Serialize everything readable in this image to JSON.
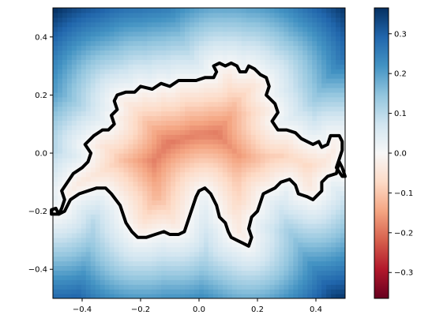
{
  "chart_data": {
    "type": "heatmap",
    "title": "",
    "xlabel": "",
    "ylabel": "",
    "xlim": [
      -0.5,
      0.5
    ],
    "ylim": [
      -0.5,
      0.5
    ],
    "x_ticks": [
      {
        "value": -0.4,
        "label": "−0.4"
      },
      {
        "value": -0.2,
        "label": "−0.2"
      },
      {
        "value": 0.0,
        "label": "0.0"
      },
      {
        "value": 0.2,
        "label": "0.2"
      },
      {
        "value": 0.4,
        "label": "0.4"
      }
    ],
    "y_ticks": [
      {
        "value": 0.4,
        "label": "0.4"
      },
      {
        "value": 0.2,
        "label": "0.2"
      },
      {
        "value": 0.0,
        "label": "0.0"
      },
      {
        "value": -0.2,
        "label": "−0.2"
      },
      {
        "value": -0.4,
        "label": "−0.4"
      }
    ],
    "colorbar": {
      "colormap": "RdBu",
      "range": [
        -0.365,
        0.365
      ],
      "ticks": [
        {
          "value": 0.3,
          "label": "0.3"
        },
        {
          "value": 0.2,
          "label": "0.2"
        },
        {
          "value": 0.1,
          "label": "0.1"
        },
        {
          "value": 0.0,
          "label": "0.0"
        },
        {
          "value": -0.1,
          "label": "−0.1"
        },
        {
          "value": -0.2,
          "label": "−0.2"
        },
        {
          "value": -0.3,
          "label": "−0.3"
        }
      ]
    },
    "field": {
      "data_x_range": [
        -0.5,
        0.5
      ],
      "data_y_range": [
        -0.5,
        0.5
      ],
      "description_values": "signed distance to boundary: negative inside, positive outside",
      "min_value": -0.15,
      "max_value": 0.365
    },
    "outline": {
      "color": "#000000",
      "points": [
        [
          -0.505,
          -0.195
        ],
        [
          -0.49,
          -0.19
        ],
        [
          -0.48,
          -0.21
        ],
        [
          -0.47,
          -0.19
        ],
        [
          -0.46,
          -0.16
        ],
        [
          -0.47,
          -0.13
        ],
        [
          -0.45,
          -0.1
        ],
        [
          -0.43,
          -0.07
        ],
        [
          -0.4,
          -0.05
        ],
        [
          -0.38,
          -0.03
        ],
        [
          -0.37,
          0.0
        ],
        [
          -0.39,
          0.03
        ],
        [
          -0.36,
          0.06
        ],
        [
          -0.33,
          0.08
        ],
        [
          -0.31,
          0.08
        ],
        [
          -0.29,
          0.1
        ],
        [
          -0.3,
          0.13
        ],
        [
          -0.28,
          0.15
        ],
        [
          -0.29,
          0.18
        ],
        [
          -0.28,
          0.2
        ],
        [
          -0.25,
          0.21
        ],
        [
          -0.22,
          0.21
        ],
        [
          -0.2,
          0.23
        ],
        [
          -0.16,
          0.22
        ],
        [
          -0.13,
          0.24
        ],
        [
          -0.1,
          0.23
        ],
        [
          -0.07,
          0.25
        ],
        [
          -0.04,
          0.25
        ],
        [
          -0.01,
          0.25
        ],
        [
          0.02,
          0.26
        ],
        [
          0.05,
          0.26
        ],
        [
          0.06,
          0.28
        ],
        [
          0.05,
          0.3
        ],
        [
          0.07,
          0.31
        ],
        [
          0.09,
          0.3
        ],
        [
          0.11,
          0.31
        ],
        [
          0.13,
          0.3
        ],
        [
          0.14,
          0.28
        ],
        [
          0.16,
          0.28
        ],
        [
          0.17,
          0.3
        ],
        [
          0.19,
          0.29
        ],
        [
          0.21,
          0.27
        ],
        [
          0.23,
          0.26
        ],
        [
          0.24,
          0.23
        ],
        [
          0.23,
          0.2
        ],
        [
          0.26,
          0.17
        ],
        [
          0.27,
          0.14
        ],
        [
          0.25,
          0.11
        ],
        [
          0.27,
          0.08
        ],
        [
          0.3,
          0.08
        ],
        [
          0.33,
          0.07
        ],
        [
          0.35,
          0.05
        ],
        [
          0.37,
          0.04
        ],
        [
          0.39,
          0.03
        ],
        [
          0.41,
          0.04
        ],
        [
          0.42,
          0.02
        ],
        [
          0.44,
          0.03
        ],
        [
          0.45,
          0.06
        ],
        [
          0.48,
          0.06
        ],
        [
          0.49,
          0.04
        ],
        [
          0.49,
          0.01
        ],
        [
          0.48,
          -0.02
        ],
        [
          0.47,
          -0.05
        ],
        [
          0.49,
          -0.08
        ],
        [
          0.5,
          -0.08
        ],
        [
          0.49,
          -0.05
        ],
        [
          0.48,
          -0.03
        ],
        [
          0.47,
          -0.07
        ],
        [
          0.44,
          -0.08
        ],
        [
          0.42,
          -0.1
        ],
        [
          0.42,
          -0.13
        ],
        [
          0.39,
          -0.16
        ],
        [
          0.37,
          -0.15
        ],
        [
          0.34,
          -0.14
        ],
        [
          0.33,
          -0.11
        ],
        [
          0.31,
          -0.09
        ],
        [
          0.28,
          -0.1
        ],
        [
          0.26,
          -0.12
        ],
        [
          0.24,
          -0.13
        ],
        [
          0.22,
          -0.14
        ],
        [
          0.21,
          -0.17
        ],
        [
          0.2,
          -0.2
        ],
        [
          0.18,
          -0.22
        ],
        [
          0.17,
          -0.26
        ],
        [
          0.18,
          -0.29
        ],
        [
          0.17,
          -0.32
        ],
        [
          0.15,
          -0.31
        ],
        [
          0.13,
          -0.3
        ],
        [
          0.11,
          -0.29
        ],
        [
          0.1,
          -0.27
        ],
        [
          0.09,
          -0.24
        ],
        [
          0.07,
          -0.22
        ],
        [
          0.06,
          -0.18
        ],
        [
          0.04,
          -0.14
        ],
        [
          0.02,
          -0.12
        ],
        [
          0.0,
          -0.13
        ],
        [
          -0.01,
          -0.15
        ],
        [
          -0.02,
          -0.18
        ],
        [
          -0.03,
          -0.21
        ],
        [
          -0.04,
          -0.24
        ],
        [
          -0.05,
          -0.27
        ],
        [
          -0.07,
          -0.28
        ],
        [
          -0.1,
          -0.28
        ],
        [
          -0.12,
          -0.27
        ],
        [
          -0.15,
          -0.28
        ],
        [
          -0.18,
          -0.29
        ],
        [
          -0.21,
          -0.29
        ],
        [
          -0.23,
          -0.27
        ],
        [
          -0.25,
          -0.24
        ],
        [
          -0.26,
          -0.21
        ],
        [
          -0.27,
          -0.18
        ],
        [
          -0.3,
          -0.14
        ],
        [
          -0.32,
          -0.12
        ],
        [
          -0.35,
          -0.12
        ],
        [
          -0.38,
          -0.13
        ],
        [
          -0.41,
          -0.14
        ],
        [
          -0.44,
          -0.16
        ],
        [
          -0.46,
          -0.2
        ],
        [
          -0.48,
          -0.21
        ],
        [
          -0.505,
          -0.21
        ],
        [
          -0.505,
          -0.195
        ]
      ]
    }
  }
}
